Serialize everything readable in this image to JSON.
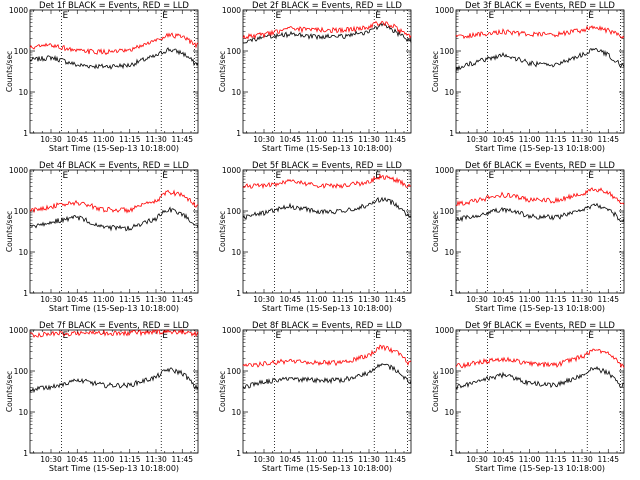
{
  "figure": {
    "xlabel": "Start Time (15-Sep-13 10:18:00)",
    "ylabel": "Counts/sec",
    "x_tick_labels": [
      "10:30",
      "10:45",
      "11:00",
      "11:15",
      "11:30",
      "11:45"
    ],
    "y_tick_labels": [
      "1",
      "10",
      "100",
      "1000"
    ],
    "colors": {
      "events": "#000000",
      "lld": "#ff0000"
    },
    "event_marker_label": "E"
  },
  "chart_data": [
    {
      "type": "line",
      "title": "Det 1f BLACK = Events, RED = LLD",
      "xlabel": "Start Time (15-Sep-13 10:18:00)",
      "ylabel": "Counts/sec",
      "x_range": [
        "10:18",
        "11:54"
      ],
      "ylim": [
        1,
        1000
      ],
      "y_scale": "log",
      "vlines": [
        "10:36",
        "11:33",
        "11:52"
      ],
      "x": [
        "10:18",
        "10:30",
        "10:45",
        "11:00",
        "11:15",
        "11:30",
        "11:37",
        "11:45",
        "11:52"
      ],
      "series": [
        {
          "name": "Events",
          "values": [
            60,
            70,
            45,
            42,
            45,
            75,
            110,
            90,
            50
          ]
        },
        {
          "name": "LLD",
          "values": [
            120,
            140,
            100,
            95,
            100,
            180,
            250,
            220,
            140
          ]
        }
      ]
    },
    {
      "type": "line",
      "title": "Det 2f BLACK = Events, RED = LLD",
      "xlabel": "Start Time (15-Sep-13 10:18:00)",
      "ylabel": "Counts/sec",
      "x_range": [
        "10:18",
        "11:54"
      ],
      "ylim": [
        1,
        1000
      ],
      "y_scale": "log",
      "vlines": [
        "10:36",
        "11:33",
        "11:52"
      ],
      "x": [
        "10:18",
        "10:30",
        "10:45",
        "11:00",
        "11:15",
        "11:30",
        "11:37",
        "11:45",
        "11:52"
      ],
      "series": [
        {
          "name": "Events",
          "values": [
            170,
            210,
            260,
            220,
            230,
            300,
            430,
            300,
            180
          ]
        },
        {
          "name": "LLD",
          "values": [
            220,
            250,
            350,
            330,
            320,
            380,
            520,
            380,
            230
          ]
        }
      ]
    },
    {
      "type": "line",
      "title": "Det 3f BLACK = Events, RED = LLD",
      "xlabel": "Start Time (15-Sep-13 10:18:00)",
      "ylabel": "Counts/sec",
      "x_range": [
        "10:18",
        "11:54"
      ],
      "ylim": [
        1,
        1000
      ],
      "y_scale": "log",
      "vlines": [
        "10:36",
        "11:33",
        "11:52"
      ],
      "x": [
        "10:18",
        "10:30",
        "10:45",
        "11:00",
        "11:15",
        "11:30",
        "11:37",
        "11:45",
        "11:52"
      ],
      "series": [
        {
          "name": "Events",
          "values": [
            35,
            55,
            80,
            50,
            45,
            80,
            110,
            80,
            45
          ]
        },
        {
          "name": "LLD",
          "values": [
            220,
            250,
            300,
            260,
            250,
            320,
            380,
            320,
            220
          ]
        }
      ]
    },
    {
      "type": "line",
      "title": "Det 4f BLACK = Events, RED = LLD",
      "xlabel": "Start Time (15-Sep-13 10:18:00)",
      "ylabel": "Counts/sec",
      "x_range": [
        "10:18",
        "11:54"
      ],
      "ylim": [
        1,
        1000
      ],
      "y_scale": "log",
      "vlines": [
        "10:36",
        "11:33",
        "11:52"
      ],
      "x": [
        "10:18",
        "10:30",
        "10:45",
        "11:00",
        "11:15",
        "11:30",
        "11:37",
        "11:45",
        "11:52"
      ],
      "series": [
        {
          "name": "Events",
          "values": [
            40,
            55,
            70,
            40,
            38,
            65,
            110,
            85,
            45
          ]
        },
        {
          "name": "LLD",
          "values": [
            100,
            130,
            160,
            110,
            105,
            170,
            300,
            250,
            140
          ]
        }
      ]
    },
    {
      "type": "line",
      "title": "Det 5f BLACK = Events, RED = LLD",
      "xlabel": "Start Time (15-Sep-13 10:18:00)",
      "ylabel": "Counts/sec",
      "x_range": [
        "10:18",
        "11:54"
      ],
      "ylim": [
        1,
        1000
      ],
      "y_scale": "log",
      "vlines": [
        "10:36",
        "11:33",
        "11:52"
      ],
      "x": [
        "10:18",
        "10:30",
        "10:45",
        "11:00",
        "11:15",
        "11:30",
        "11:37",
        "11:45",
        "11:52"
      ],
      "series": [
        {
          "name": "Events",
          "values": [
            70,
            90,
            130,
            100,
            95,
            140,
            200,
            150,
            80
          ]
        },
        {
          "name": "LLD",
          "values": [
            400,
            420,
            520,
            420,
            400,
            520,
            700,
            600,
            400
          ]
        }
      ]
    },
    {
      "type": "line",
      "title": "Det 6f BLACK = Events, RED = LLD",
      "xlabel": "Start Time (15-Sep-13 10:18:00)",
      "ylabel": "Counts/sec",
      "x_range": [
        "10:18",
        "11:54"
      ],
      "ylim": [
        1,
        1000
      ],
      "y_scale": "log",
      "vlines": [
        "10:36",
        "11:33",
        "11:52"
      ],
      "x": [
        "10:18",
        "10:30",
        "10:45",
        "11:00",
        "11:15",
        "11:30",
        "11:37",
        "11:45",
        "11:52"
      ],
      "series": [
        {
          "name": "Events",
          "values": [
            60,
            80,
            110,
            75,
            70,
            100,
            140,
            110,
            60
          ]
        },
        {
          "name": "LLD",
          "values": [
            150,
            180,
            250,
            190,
            180,
            260,
            350,
            280,
            160
          ]
        }
      ]
    },
    {
      "type": "line",
      "title": "Det 7f BLACK = Events, RED = LLD",
      "xlabel": "Start Time (15-Sep-13 10:18:00)",
      "ylabel": "Counts/sec",
      "x_range": [
        "10:18",
        "11:54"
      ],
      "ylim": [
        1,
        1000
      ],
      "y_scale": "log",
      "vlines": [
        "10:36",
        "11:33",
        "11:52"
      ],
      "x": [
        "10:18",
        "10:30",
        "10:45",
        "11:00",
        "11:15",
        "11:30",
        "11:37",
        "11:45",
        "11:52"
      ],
      "series": [
        {
          "name": "Events",
          "values": [
            35,
            40,
            60,
            45,
            45,
            70,
            110,
            90,
            40
          ]
        },
        {
          "name": "LLD",
          "values": [
            750,
            800,
            850,
            850,
            850,
            900,
            950,
            900,
            800
          ]
        }
      ]
    },
    {
      "type": "line",
      "title": "Det 8f BLACK = Events, RED = LLD",
      "xlabel": "Start Time (15-Sep-13 10:18:00)",
      "ylabel": "Counts/sec",
      "x_range": [
        "10:18",
        "11:54"
      ],
      "ylim": [
        1,
        1000
      ],
      "y_scale": "log",
      "vlines": [
        "10:36",
        "11:33",
        "11:52"
      ],
      "x": [
        "10:18",
        "10:30",
        "10:45",
        "11:00",
        "11:15",
        "11:30",
        "11:37",
        "11:45",
        "11:52"
      ],
      "series": [
        {
          "name": "Events",
          "values": [
            40,
            55,
            65,
            60,
            60,
            90,
            150,
            110,
            55
          ]
        },
        {
          "name": "LLD",
          "values": [
            130,
            150,
            180,
            160,
            160,
            240,
            400,
            300,
            160
          ]
        }
      ]
    },
    {
      "type": "line",
      "title": "Det 9f BLACK = Events, RED = LLD",
      "xlabel": "Start Time (15-Sep-13 10:18:00)",
      "ylabel": "Counts/sec",
      "x_range": [
        "10:18",
        "11:54"
      ],
      "ylim": [
        1,
        1000
      ],
      "y_scale": "log",
      "vlines": [
        "10:36",
        "11:33",
        "11:52"
      ],
      "x": [
        "10:18",
        "10:30",
        "10:45",
        "11:00",
        "11:15",
        "11:30",
        "11:37",
        "11:45",
        "11:52"
      ],
      "series": [
        {
          "name": "Events",
          "values": [
            40,
            55,
            80,
            50,
            45,
            75,
            120,
            90,
            45
          ]
        },
        {
          "name": "LLD",
          "values": [
            130,
            160,
            200,
            150,
            140,
            220,
            320,
            260,
            140
          ]
        }
      ]
    }
  ]
}
